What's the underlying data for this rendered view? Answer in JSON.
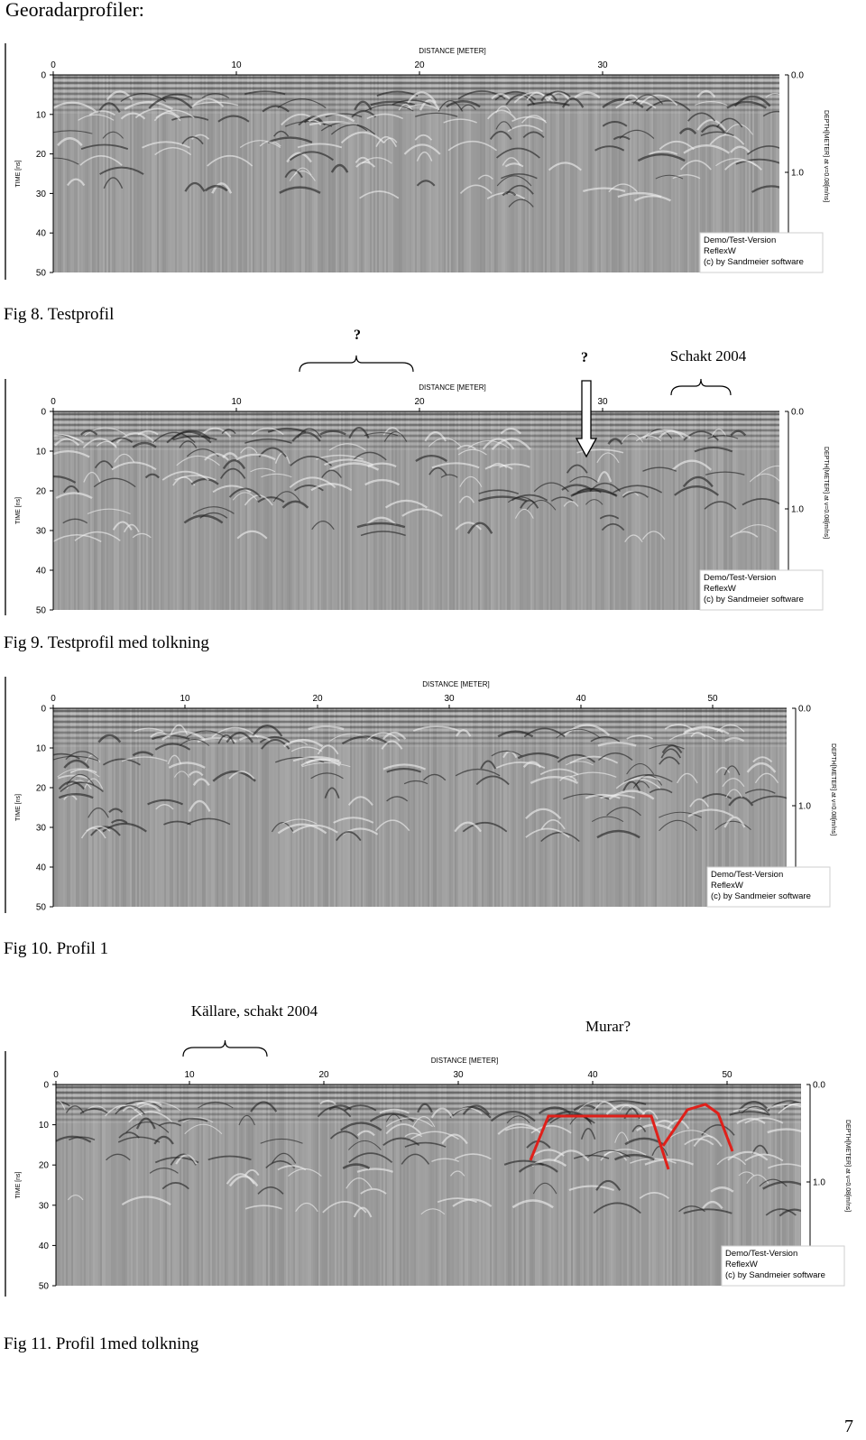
{
  "heading": "Georadarprofiler:",
  "page_number": "7",
  "figures": [
    {
      "id": "fig8",
      "caption": "Fig 8. Testprofil",
      "axis_title_top": "DISTANCE [METER]",
      "axis_title_left": "TIME [ns]",
      "axis_title_right": "DEPTH[METER] at v=0.08[m/ns]",
      "x_ticks": [
        "0",
        "10",
        "20",
        "30"
      ],
      "y_ticks": [
        "0",
        "10",
        "20",
        "30",
        "40",
        "50"
      ],
      "depth_ticks": [
        "0.0",
        "1.0"
      ],
      "watermark": [
        "Demo/Test-Version",
        "ReflexW",
        "(c) by Sandmeier software"
      ],
      "annotations": []
    },
    {
      "id": "fig9",
      "caption": "Fig 9. Testprofil med tolkning",
      "axis_title_top": "DISTANCE [METER]",
      "axis_title_left": "TIME [ns]",
      "axis_title_right": "DEPTH[METER] at v=0.08[m/ns]",
      "x_ticks": [
        "0",
        "10",
        "20",
        "30"
      ],
      "y_ticks": [
        "0",
        "10",
        "20",
        "30",
        "40",
        "50"
      ],
      "depth_ticks": [
        "0.0",
        "1.0"
      ],
      "watermark": [
        "Demo/Test-Version",
        "ReflexW",
        "(c) by Sandmeier software"
      ],
      "annotations": [
        "?",
        "?",
        "Schakt 2004"
      ]
    },
    {
      "id": "fig10",
      "caption": "Fig 10. Profil 1",
      "axis_title_top": "DISTANCE [METER]",
      "axis_title_left": "TIME [ns]",
      "axis_title_right": "DEPTH[METER] at v=0.08[m/ns]",
      "x_ticks": [
        "0",
        "10",
        "20",
        "30",
        "40",
        "50"
      ],
      "y_ticks": [
        "0",
        "10",
        "20",
        "30",
        "40",
        "50"
      ],
      "depth_ticks": [
        "0.0",
        "1.0"
      ],
      "watermark": [
        "Demo/Test-Version",
        "ReflexW",
        "(c) by Sandmeier software"
      ],
      "annotations": []
    },
    {
      "id": "fig11",
      "caption": "Fig 11. Profil 1med tolkning",
      "axis_title_top": "DISTANCE [METER]",
      "axis_title_left": "TIME [ns]",
      "axis_title_right": "DEPTH[METER] at v=0.08[m/ns]",
      "x_ticks": [
        "0",
        "10",
        "20",
        "30",
        "40",
        "50"
      ],
      "y_ticks": [
        "0",
        "10",
        "20",
        "30",
        "40",
        "50"
      ],
      "depth_ticks": [
        "0.0",
        "1.0"
      ],
      "watermark": [
        "Demo/Test-Version",
        "ReflexW",
        "(c) by Sandmeier software"
      ],
      "annotations": [
        "Källare, schakt 2004",
        "Murar?"
      ]
    }
  ],
  "colors": {
    "radargram_bg": "#9c9c9c",
    "interpretation_line": "#e0201a"
  }
}
